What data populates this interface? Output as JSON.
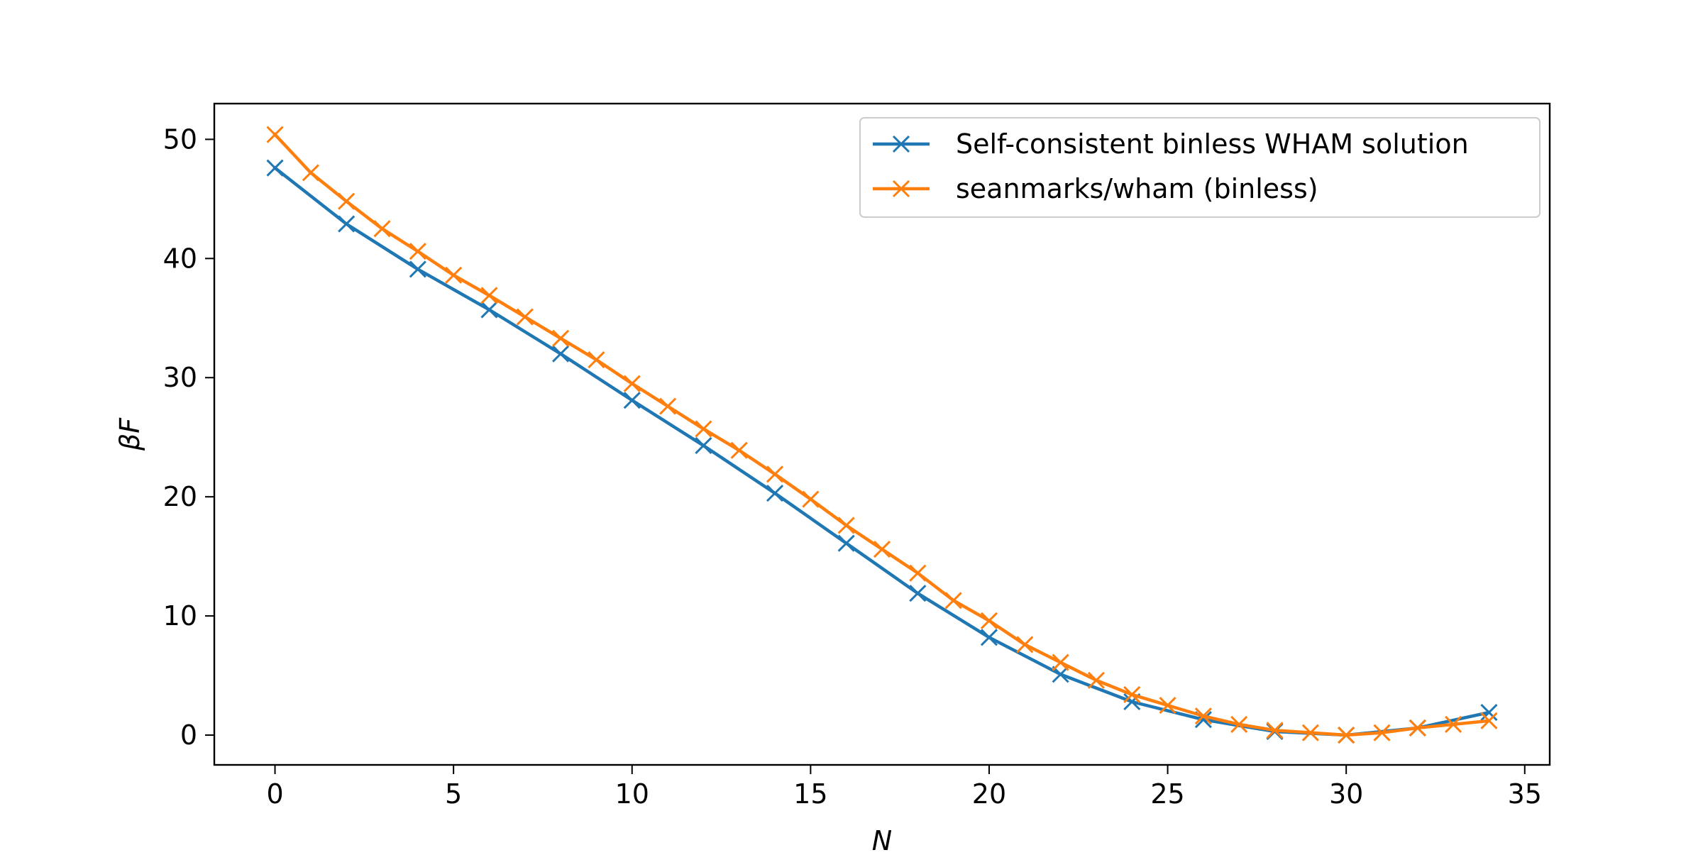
{
  "chart_data": {
    "type": "line",
    "title": "",
    "xlabel": "N",
    "ylabel": "βF",
    "xlim": [
      -1.7,
      35.7
    ],
    "ylim": [
      -2.5,
      53.0
    ],
    "xticks": [
      0,
      5,
      10,
      15,
      20,
      25,
      30,
      35
    ],
    "yticks": [
      0,
      10,
      20,
      30,
      40,
      50
    ],
    "grid": false,
    "legend_position": "top-right",
    "series": [
      {
        "name": "Self-consistent binless WHAM solution",
        "color": "#1f77b4",
        "marker": "x",
        "x": [
          0,
          2,
          4,
          6,
          8,
          10,
          12,
          14,
          16,
          18,
          20,
          22,
          24,
          26,
          28,
          30,
          32,
          34
        ],
        "y": [
          47.6,
          42.9,
          39.1,
          35.7,
          32.0,
          28.1,
          24.3,
          20.3,
          16.1,
          11.9,
          8.2,
          5.1,
          2.8,
          1.3,
          0.3,
          0.0,
          0.6,
          1.9
        ]
      },
      {
        "name": "seanmarks/wham (binless)",
        "color": "#ff7f0e",
        "marker": "x",
        "x": [
          0,
          1,
          2,
          3,
          4,
          5,
          6,
          7,
          8,
          9,
          10,
          11,
          12,
          13,
          14,
          15,
          16,
          17,
          18,
          19,
          20,
          21,
          22,
          23,
          24,
          25,
          26,
          27,
          28,
          29,
          30,
          31,
          32,
          33,
          34
        ],
        "y": [
          50.4,
          47.2,
          44.8,
          42.5,
          40.6,
          38.6,
          36.9,
          35.1,
          33.3,
          31.5,
          29.5,
          27.6,
          25.7,
          23.9,
          21.9,
          19.8,
          17.6,
          15.6,
          13.6,
          11.3,
          9.6,
          7.6,
          6.1,
          4.6,
          3.4,
          2.5,
          1.6,
          0.9,
          0.4,
          0.2,
          0.0,
          0.2,
          0.6,
          0.9,
          1.2
        ]
      }
    ]
  }
}
